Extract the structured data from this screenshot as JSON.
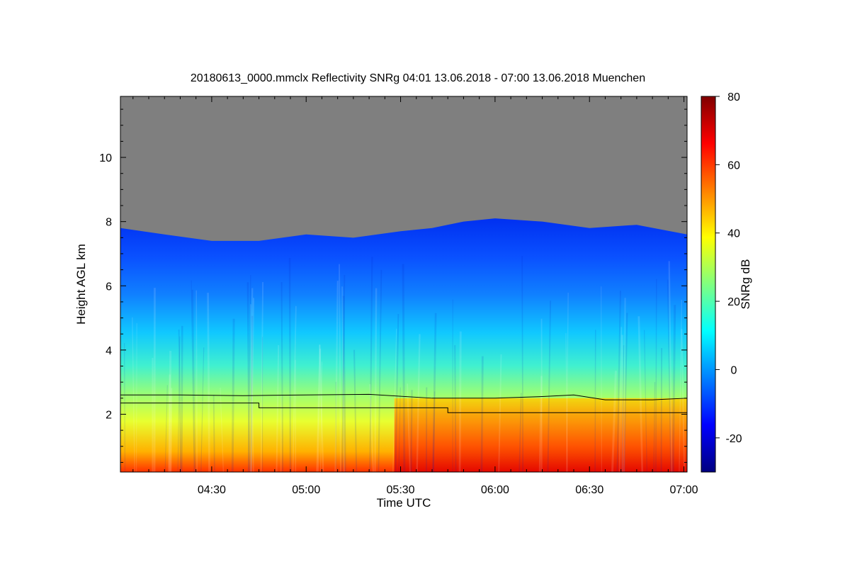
{
  "chart_data": {
    "type": "heatmap",
    "title": "20180613_0000.mmclx Reflectivity SNRg   04:01 13.06.2018 - 07:00 13.06.2018 Muenchen",
    "xlabel": "Time UTC",
    "ylabel": "Height AGL km",
    "x_tick_labels": [
      "04:30",
      "05:00",
      "05:30",
      "06:00",
      "06:30",
      "07:00"
    ],
    "x_ticks_minutes": [
      270,
      300,
      330,
      360,
      390,
      420
    ],
    "xlim_minutes": [
      241,
      421
    ],
    "y_ticks": [
      2,
      4,
      6,
      8,
      10
    ],
    "ylim": [
      0.2,
      11.9
    ],
    "colorbar": {
      "label": "SNRg dB",
      "ticks": [
        -20,
        0,
        20,
        40,
        60,
        80
      ],
      "range": [
        -30,
        80
      ],
      "colors": [
        "#000080",
        "#0000ff",
        "#0080ff",
        "#00ffff",
        "#80ff80",
        "#ffff00",
        "#ff8000",
        "#ff0000",
        "#800000"
      ]
    },
    "no_signal_color": "#7f7f7f",
    "echo_top_km": [
      {
        "t": 241,
        "h": 7.8
      },
      {
        "t": 255,
        "h": 7.6
      },
      {
        "t": 270,
        "h": 7.4
      },
      {
        "t": 285,
        "h": 7.4
      },
      {
        "t": 300,
        "h": 7.6
      },
      {
        "t": 315,
        "h": 7.5
      },
      {
        "t": 330,
        "h": 7.7
      },
      {
        "t": 340,
        "h": 7.8
      },
      {
        "t": 350,
        "h": 8.0
      },
      {
        "t": 360,
        "h": 8.1
      },
      {
        "t": 375,
        "h": 8.0
      },
      {
        "t": 390,
        "h": 7.8
      },
      {
        "t": 405,
        "h": 7.9
      },
      {
        "t": 421,
        "h": 7.6
      }
    ],
    "series": [
      {
        "points": [
          {
            "t": 241,
            "h": 2.6
          },
          {
            "t": 260,
            "h": 2.6
          },
          {
            "t": 280,
            "h": 2.58
          },
          {
            "t": 300,
            "h": 2.6
          },
          {
            "t": 320,
            "h": 2.62
          },
          {
            "t": 340,
            "h": 2.5
          },
          {
            "t": 360,
            "h": 2.5
          },
          {
            "t": 375,
            "h": 2.55
          },
          {
            "t": 385,
            "h": 2.6
          },
          {
            "t": 395,
            "h": 2.45
          },
          {
            "t": 410,
            "h": 2.45
          },
          {
            "t": 421,
            "h": 2.5
          }
        ]
      },
      {
        "points": [
          {
            "t": 241,
            "h": 2.35
          },
          {
            "t": 285,
            "h": 2.35
          },
          {
            "t": 285,
            "h": 2.2
          },
          {
            "t": 345,
            "h": 2.2
          },
          {
            "t": 345,
            "h": 2.05
          },
          {
            "t": 423,
            "h": 2.05
          }
        ]
      }
    ]
  }
}
